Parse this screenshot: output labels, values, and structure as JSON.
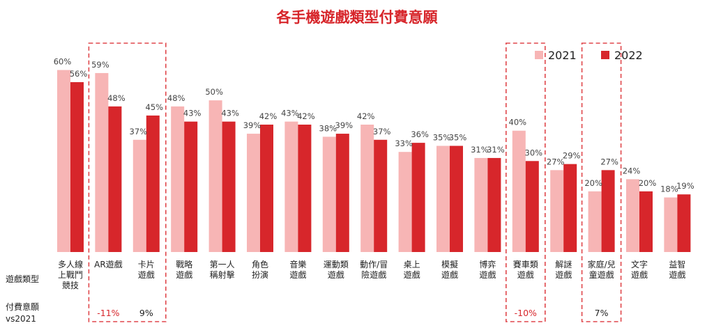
{
  "chart_data": {
    "type": "bar",
    "title": "各手機遊戲類型付費意願",
    "xlabel": "",
    "ylabel": "",
    "ylim": [
      0,
      70
    ],
    "grid": false,
    "legend_position": "top-right",
    "categories": [
      [
        "多人線",
        "上戰鬥",
        "競技"
      ],
      [
        "AR遊戲"
      ],
      [
        "卡片",
        "遊戲"
      ],
      [
        "戰略",
        "遊戲"
      ],
      [
        "第一人",
        "稱射擊"
      ],
      [
        "角色",
        "扮演"
      ],
      [
        "音樂",
        "遊戲"
      ],
      [
        "運動類",
        "遊戲"
      ],
      [
        "動作/冒",
        "險遊戲"
      ],
      [
        "桌上",
        "遊戲"
      ],
      [
        "模擬",
        "遊戲"
      ],
      [
        "博弈",
        "遊戲"
      ],
      [
        "賽車類",
        "遊戲"
      ],
      [
        "解謎",
        "遊戲"
      ],
      [
        "家庭/兒",
        "童遊戲"
      ],
      [
        "文字",
        "遊戲"
      ],
      [
        "益智",
        "遊戲"
      ]
    ],
    "series": [
      {
        "name": "2021",
        "color": "#F7B5B5",
        "values": [
          60,
          59,
          37,
          48,
          50,
          39,
          43,
          38,
          42,
          33,
          35,
          31,
          40,
          27,
          20,
          24,
          18
        ]
      },
      {
        "name": "2022",
        "color": "#D7262B",
        "values": [
          56,
          48,
          45,
          43,
          43,
          42,
          42,
          39,
          37,
          36,
          35,
          31,
          30,
          29,
          27,
          20,
          19
        ]
      }
    ],
    "value_suffix": "%",
    "row_labels": {
      "category": "遊戲類型",
      "change": [
        "付費意願",
        "vs2021"
      ]
    },
    "changes": [
      {
        "category_index": 1,
        "text": "-11%",
        "color": "#D7262B"
      },
      {
        "category_index": 2,
        "text": "9%",
        "color": "#222222"
      },
      {
        "category_index": 12,
        "text": "-10%",
        "color": "#D7262B"
      },
      {
        "category_index": 14,
        "text": "7%",
        "color": "#222222"
      }
    ],
    "highlight_boxes": [
      {
        "from_index": 1,
        "to_index": 2
      },
      {
        "from_index": 12,
        "to_index": 12
      },
      {
        "from_index": 14,
        "to_index": 14
      }
    ]
  }
}
